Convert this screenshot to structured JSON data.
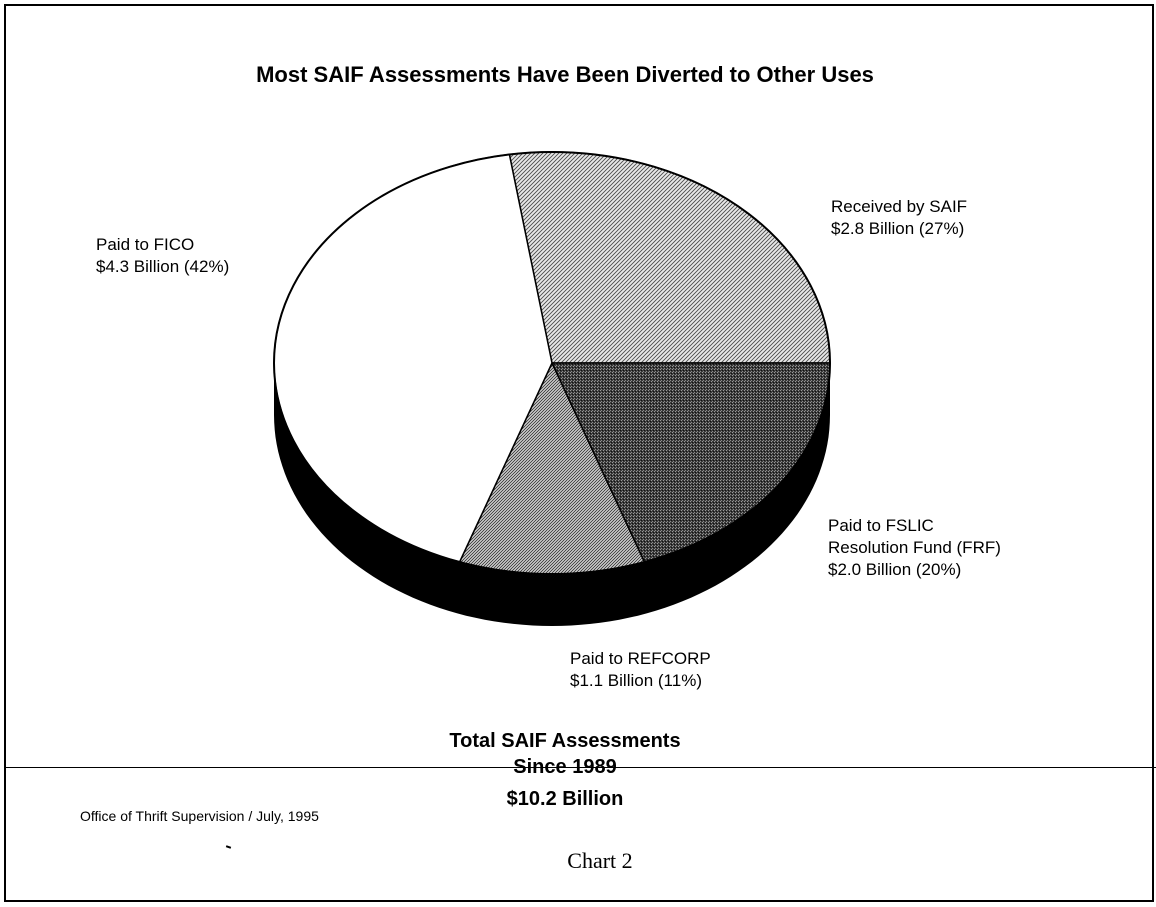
{
  "chart_data": {
    "type": "pie",
    "title": "Most SAIF Assessments Have Been Diverted to Other Uses",
    "slices": [
      {
        "key": "saif",
        "name": "Received by SAIF",
        "amount_label": "$2.8 Billion (27%)",
        "value": 2.8,
        "percent": 27,
        "fill": "diag-light"
      },
      {
        "key": "frf",
        "name": "Paid to FSLIC Resolution Fund (FRF)",
        "name_lines": [
          "Paid to FSLIC",
          "Resolution Fund (FRF)"
        ],
        "amount_label": "$2.0 Billion (20%)",
        "value": 2.0,
        "percent": 20,
        "fill": "dark-stipple"
      },
      {
        "key": "refcorp",
        "name": "Paid to REFCORP",
        "amount_label": "$1.1 Billion (11%)",
        "value": 1.1,
        "percent": 11,
        "fill": "diag-dense"
      },
      {
        "key": "fico",
        "name": "Paid to FICO",
        "amount_label": "$4.3 Billion (42%)",
        "value": 4.3,
        "percent": 42,
        "fill": "white"
      }
    ],
    "total": {
      "line1": "Total SAIF Assessments",
      "line2": "Since 1989",
      "line3": "$10.2 Billion"
    }
  },
  "footer": {
    "source": "Office of Thrift Supervision / July, 1995",
    "caption": "Chart 2"
  }
}
